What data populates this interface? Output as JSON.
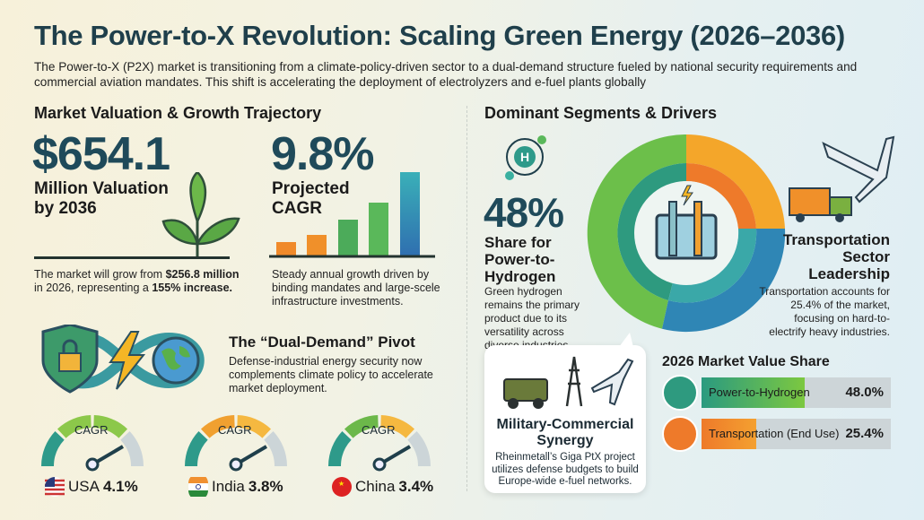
{
  "header": {
    "title": "The Power-to-X Revolution: Scaling Green Energy (2026–2036)",
    "subtitle": "The Power-to-X (P2X) market is transitioning from a climate-policy-driven sector to a dual-demand structure fueled by national security requirements and commercial aviation mandates. This shift is accelerating the deployment of electrolyzers and e-fuel plants globally"
  },
  "valuation": {
    "heading": "Market Valuation & Growth Trajectory",
    "value": "$654.1",
    "label": "Million Valuation by 2036",
    "text_pre": "The market will grow from ",
    "text_bold1": "$256.8 million",
    "text_mid": " in 2026, representing a ",
    "text_bold2": "155% increase."
  },
  "cagr": {
    "value": "9.8%",
    "label": "Projected CAGR",
    "text": "Steady annual growth driven by binding mandates and large-scele infrastructure investments."
  },
  "pivot": {
    "title": "The “Dual-Demand” Pivot",
    "text": "Defense-industrial energy security now complements climate policy to accelerate market deployment."
  },
  "gauges": [
    {
      "caption": "CAGR",
      "country": "USA",
      "value": "4.1%",
      "flag": "usa-flag"
    },
    {
      "caption": "CAGR",
      "country": "India",
      "value": "3.8%",
      "flag": "india-flag"
    },
    {
      "caption": "CAGR",
      "country": "China",
      "value": "3.4%",
      "flag": "china-flag"
    }
  ],
  "segments": {
    "heading": "Dominant Segments & Drivers",
    "h2_value": "48%",
    "h2_label": "Share for Power-to-Hydrogen",
    "h2_text": "Green hydrogen remains the primary product due to its versatility across diverse industries.",
    "transport_label": "Transportation Sector Leadership",
    "transport_text": "Transportation accounts for 25.4% of the market, focusing on hard-to-electrify heavy industries."
  },
  "military": {
    "title": "Military-Commercial Synergy",
    "text": "Rheinmetall’s Giga PtX project utilizes defense budgets to build Europe-wide e-fuel networks."
  },
  "share": {
    "title": "2026 Market Value Share",
    "items": [
      {
        "label": "Power-to-Hydrogen",
        "value": "48.0%",
        "pct": 48,
        "color": "#2e9a7f"
      },
      {
        "label": "Transportation (End Use)",
        "value": "25.4%",
        "pct": 25.4,
        "color": "#ee7a2a"
      }
    ]
  },
  "colors": {
    "title": "#1f3f4b",
    "green": "#5cb84a",
    "teal": "#2e9a8a",
    "orange": "#f08a2a",
    "blue": "#2f7fb0"
  }
}
